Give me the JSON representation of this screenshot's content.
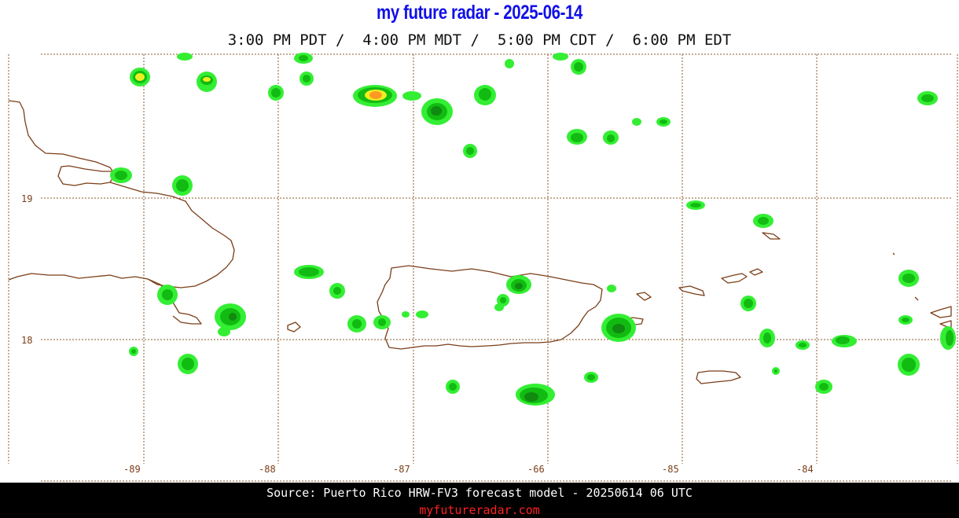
{
  "header": {
    "title": "my future radar - 2025-06-14",
    "times": "3:00 PM PDT /  4:00 PM MDT /  5:00 PM CDT /  6:00 PM EDT"
  },
  "map": {
    "region": "Puerto Rico",
    "longitude_labels": [
      "-89",
      "-88",
      "-87",
      "-66",
      "-85",
      "-84"
    ],
    "latitude_labels": [
      "19",
      "18"
    ],
    "colors": {
      "light_green": "#33ee33",
      "green": "#11bb11",
      "dark_green": "#108a10",
      "yellow": "#eeee22",
      "orange": "#ff9922",
      "coastline": "#7a3e18",
      "grid": "#8b5a2b"
    }
  },
  "footer": {
    "source": "Source: Puerto Rico HRW-FV3 forecast model - 20250614 06 UTC",
    "site": "myfutureradar.com"
  }
}
